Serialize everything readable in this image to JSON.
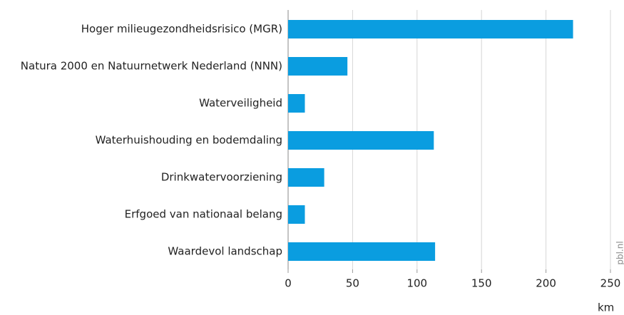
{
  "chart_data": {
    "type": "hbar",
    "categories": [
      "Hoger milieugezondheidsrisico (MGR)",
      "Natura 2000 en Natuurnetwerk Nederland (NNN)",
      "Waterveiligheid",
      "Waterhuishouding en bodemdaling",
      "Drinkwatervoorziening",
      "Erfgoed van nationaal belang",
      "Waardevol landschap"
    ],
    "values": [
      221,
      46,
      13,
      113,
      28,
      13,
      114
    ],
    "color": "#0a9de0",
    "xlim": [
      0,
      250
    ],
    "xticks": [
      0,
      50,
      100,
      150,
      200,
      250
    ],
    "xlabel": "km",
    "credit": "pbl.nl",
    "grid": true
  }
}
